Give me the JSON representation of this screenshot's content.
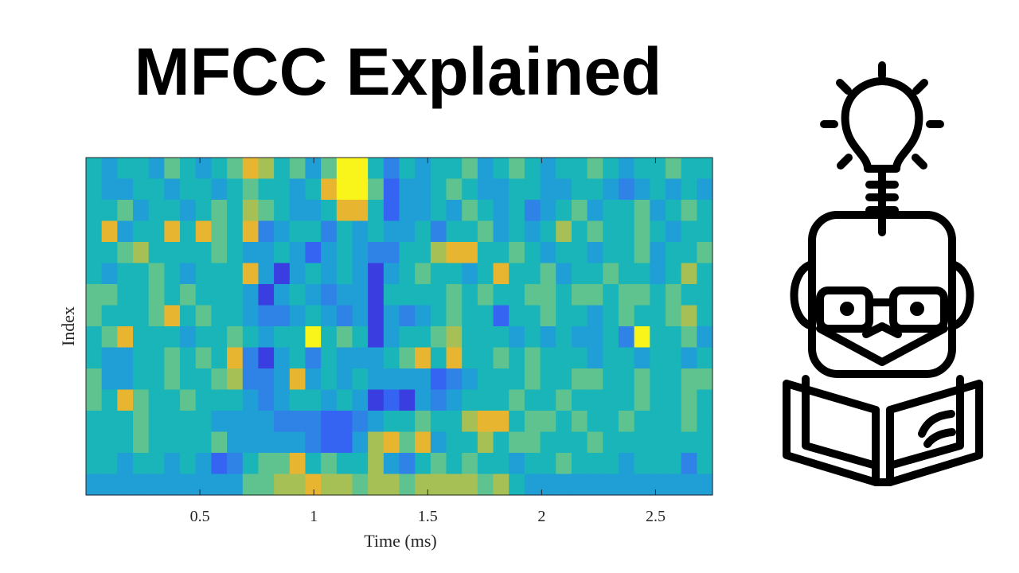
{
  "title": "MFCC Explained",
  "illustration": {
    "icon": "reader-with-lightbulb-icon"
  },
  "chart_data": {
    "type": "heatmap",
    "title": "",
    "xlabel": "Time (ms)",
    "ylabel": "Index",
    "xlim": [
      0,
      2.75
    ],
    "xticks": [
      0.5,
      1,
      1.5,
      2,
      2.5
    ],
    "xtick_labels": [
      "0.5",
      "1",
      "1.5",
      "2",
      "2.5"
    ],
    "yticks": [],
    "colormap": "parula",
    "color_scale": [
      "#352a87",
      "#3a3de0",
      "#3564f2",
      "#2f82e6",
      "#1f9fd6",
      "#19b5b8",
      "#5ec38e",
      "#a6c055",
      "#e8b530",
      "#f9f419"
    ],
    "value_range": [
      0,
      9
    ],
    "values": [
      [
        5,
        4,
        5,
        5,
        4,
        6,
        5,
        4,
        5,
        6,
        8,
        7,
        5,
        6,
        4,
        6,
        9,
        9,
        5,
        3,
        5,
        4,
        5,
        5,
        6,
        4,
        5,
        6,
        5,
        4,
        5,
        5,
        6,
        5,
        4,
        5,
        5,
        6,
        5,
        5
      ],
      [
        5,
        4,
        4,
        5,
        5,
        4,
        5,
        5,
        4,
        5,
        6,
        5,
        5,
        4,
        5,
        8,
        9,
        9,
        6,
        2,
        4,
        4,
        5,
        6,
        5,
        4,
        4,
        5,
        5,
        4,
        4,
        5,
        5,
        4,
        3,
        4,
        5,
        4,
        5,
        4
      ],
      [
        5,
        5,
        6,
        4,
        5,
        5,
        4,
        5,
        6,
        5,
        7,
        6,
        5,
        4,
        4,
        5,
        8,
        8,
        5,
        2,
        4,
        4,
        5,
        4,
        6,
        5,
        4,
        5,
        3,
        4,
        5,
        6,
        4,
        5,
        5,
        6,
        4,
        5,
        6,
        5
      ],
      [
        5,
        8,
        4,
        5,
        5,
        8,
        5,
        8,
        6,
        5,
        8,
        3,
        4,
        5,
        5,
        3,
        5,
        4,
        5,
        4,
        4,
        5,
        3,
        5,
        5,
        6,
        4,
        5,
        4,
        5,
        7,
        5,
        6,
        5,
        5,
        6,
        5,
        4,
        5,
        5
      ],
      [
        5,
        5,
        6,
        7,
        5,
        5,
        5,
        5,
        6,
        5,
        4,
        4,
        5,
        4,
        2,
        4,
        5,
        4,
        3,
        3,
        5,
        5,
        7,
        8,
        8,
        5,
        5,
        6,
        5,
        4,
        5,
        5,
        4,
        5,
        5,
        6,
        4,
        5,
        5,
        6
      ],
      [
        5,
        4,
        5,
        5,
        6,
        5,
        4,
        5,
        5,
        5,
        8,
        4,
        1,
        4,
        5,
        4,
        5,
        4,
        1,
        4,
        5,
        6,
        5,
        5,
        4,
        5,
        8,
        5,
        5,
        6,
        4,
        5,
        5,
        6,
        5,
        5,
        4,
        5,
        7,
        5
      ],
      [
        6,
        6,
        5,
        5,
        6,
        5,
        6,
        5,
        5,
        5,
        4,
        1,
        4,
        5,
        4,
        3,
        4,
        4,
        1,
        5,
        5,
        5,
        5,
        6,
        5,
        6,
        5,
        5,
        6,
        6,
        5,
        6,
        6,
        5,
        6,
        6,
        5,
        6,
        5,
        5
      ],
      [
        6,
        5,
        5,
        5,
        6,
        8,
        5,
        6,
        5,
        5,
        4,
        3,
        3,
        4,
        5,
        4,
        3,
        4,
        1,
        4,
        3,
        4,
        5,
        6,
        5,
        5,
        2,
        5,
        5,
        6,
        5,
        5,
        4,
        5,
        6,
        5,
        5,
        6,
        7,
        5
      ],
      [
        5,
        6,
        8,
        5,
        5,
        5,
        4,
        5,
        5,
        6,
        5,
        4,
        5,
        5,
        9,
        5,
        6,
        5,
        1,
        4,
        5,
        5,
        6,
        7,
        5,
        5,
        5,
        4,
        5,
        4,
        5,
        4,
        4,
        5,
        3,
        9,
        5,
        5,
        6,
        4
      ],
      [
        5,
        4,
        4,
        5,
        5,
        6,
        5,
        6,
        5,
        8,
        3,
        1,
        4,
        5,
        3,
        5,
        4,
        4,
        4,
        5,
        6,
        8,
        5,
        8,
        5,
        5,
        6,
        5,
        6,
        5,
        5,
        5,
        4,
        5,
        5,
        4,
        5,
        5,
        4,
        5
      ],
      [
        6,
        4,
        4,
        5,
        5,
        6,
        5,
        5,
        6,
        7,
        3,
        3,
        4,
        8,
        4,
        5,
        4,
        5,
        4,
        4,
        4,
        4,
        2,
        3,
        4,
        5,
        5,
        5,
        6,
        5,
        5,
        6,
        6,
        5,
        5,
        6,
        5,
        5,
        6,
        6
      ],
      [
        6,
        5,
        8,
        6,
        5,
        5,
        6,
        5,
        5,
        5,
        4,
        3,
        4,
        5,
        5,
        4,
        5,
        4,
        1,
        2,
        1,
        4,
        3,
        4,
        5,
        5,
        5,
        6,
        5,
        5,
        6,
        5,
        5,
        5,
        5,
        6,
        5,
        5,
        6,
        5
      ],
      [
        5,
        5,
        5,
        6,
        5,
        5,
        5,
        5,
        4,
        4,
        4,
        4,
        3,
        3,
        3,
        2,
        2,
        3,
        4,
        5,
        5,
        6,
        5,
        5,
        7,
        8,
        8,
        5,
        6,
        6,
        5,
        6,
        5,
        5,
        6,
        5,
        5,
        5,
        6,
        5
      ],
      [
        5,
        5,
        5,
        6,
        5,
        5,
        5,
        5,
        6,
        4,
        4,
        4,
        4,
        4,
        3,
        2,
        2,
        4,
        7,
        8,
        6,
        8,
        4,
        5,
        5,
        7,
        5,
        6,
        6,
        5,
        5,
        5,
        6,
        5,
        5,
        5,
        5,
        5,
        5,
        5
      ],
      [
        5,
        5,
        4,
        5,
        5,
        4,
        5,
        4,
        2,
        3,
        5,
        6,
        6,
        8,
        5,
        6,
        5,
        5,
        7,
        4,
        3,
        5,
        6,
        5,
        6,
        5,
        5,
        4,
        5,
        5,
        6,
        5,
        5,
        5,
        4,
        5,
        5,
        5,
        3,
        5
      ],
      [
        4,
        4,
        4,
        4,
        4,
        4,
        4,
        4,
        4,
        4,
        6,
        6,
        7,
        7,
        8,
        7,
        7,
        6,
        7,
        7,
        6,
        7,
        7,
        7,
        7,
        6,
        7,
        5,
        4,
        4,
        4,
        4,
        4,
        4,
        4,
        4,
        4,
        4,
        4,
        4
      ]
    ]
  }
}
